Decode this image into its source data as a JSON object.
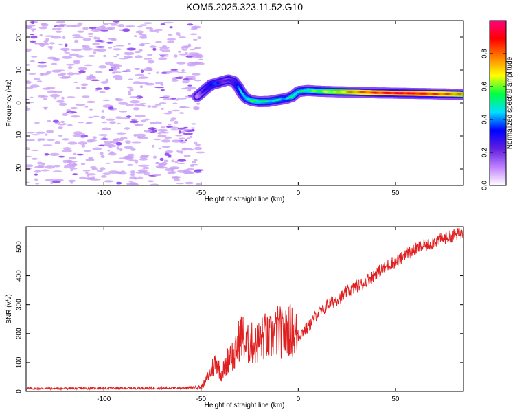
{
  "title": "KOM5.2025.323.11.52.G10",
  "chart_data": [
    {
      "type": "heatmap",
      "title": "KOM5.2025.323.11.52.G10",
      "xlabel": "Height of straight line (km)",
      "ylabel": "Frequency (Hz)",
      "xlim": [
        -140,
        85
      ],
      "ylim": [
        -25,
        25
      ],
      "xticks": [
        -100,
        -50,
        0,
        50
      ],
      "yticks": [
        -20,
        -10,
        0,
        10,
        20
      ],
      "xtick_labels": [
        "-100",
        "-50",
        "0",
        "50"
      ],
      "ytick_labels": [
        "-20",
        "-10",
        "0",
        "10",
        "20"
      ],
      "noise_region_x": [
        -140,
        -50
      ],
      "signal_trace": {
        "x": [
          -52,
          -48,
          -45,
          -42,
          -39,
          -36,
          -33,
          -31,
          -29,
          -27,
          -24,
          -20,
          -15,
          -10,
          -6,
          -3,
          0,
          5,
          10,
          20,
          30,
          40,
          50,
          60,
          70,
          80,
          85
        ],
        "y": [
          2,
          4,
          5.5,
          6,
          6.5,
          7,
          6.5,
          5,
          3,
          1.5,
          0.7,
          0.4,
          0.5,
          1,
          1.4,
          2,
          3.5,
          3.8,
          3.6,
          3.4,
          3.3,
          3.1,
          3.0,
          2.9,
          2.8,
          2.7,
          2.6
        ],
        "amplitude": [
          0.15,
          0.25,
          0.35,
          0.3,
          0.25,
          0.2,
          0.3,
          0.35,
          0.4,
          0.45,
          0.5,
          0.5,
          0.45,
          0.45,
          0.4,
          0.5,
          0.45,
          0.5,
          0.55,
          0.65,
          0.75,
          0.8,
          0.85,
          0.85,
          0.8,
          0.75,
          0.7
        ]
      },
      "colorbar": {
        "label": "Normalized spectral amplitude",
        "range": [
          0,
          1
        ],
        "ticks": [
          0.0,
          0.2,
          0.4,
          0.6,
          0.8
        ],
        "tick_labels": [
          "0.0",
          "0.2",
          "0.4",
          "0.6",
          "0.8"
        ],
        "colors": [
          "#ffffff",
          "#c080ff",
          "#6020e0",
          "#0000ff",
          "#00e0ff",
          "#00ff40",
          "#ffff00",
          "#ff8000",
          "#ff0000",
          "#ff0080"
        ]
      }
    },
    {
      "type": "line",
      "xlabel": "Height of straight line (km)",
      "ylabel": "SNR (v/v)",
      "xlim": [
        -140,
        85
      ],
      "ylim": [
        0,
        570
      ],
      "xticks": [
        -100,
        -50,
        0,
        50
      ],
      "yticks": [
        0,
        100,
        200,
        300,
        400,
        500
      ],
      "xtick_labels": [
        "-100",
        "-50",
        "0",
        "50"
      ],
      "ytick_labels": [
        "0",
        "100",
        "200",
        "300",
        "400",
        "500"
      ],
      "line_color": "#e02020",
      "series": [
        {
          "name": "SNR",
          "x": [
            -140,
            -120,
            -100,
            -80,
            -60,
            -50,
            -48,
            -45,
            -42,
            -40,
            -37,
            -35,
            -33,
            -31,
            -29,
            -27,
            -25,
            -22,
            -20,
            -17,
            -15,
            -12,
            -10,
            -7,
            -5,
            -3,
            0,
            3,
            5,
            8,
            10,
            13,
            15,
            18,
            20,
            23,
            25,
            28,
            30,
            33,
            35,
            38,
            40,
            43,
            45,
            48,
            50,
            53,
            55,
            58,
            60,
            63,
            65,
            68,
            70,
            73,
            75,
            78,
            80,
            83,
            85
          ],
          "values": [
            10,
            10,
            11,
            11,
            12,
            15,
            30,
            70,
            110,
            60,
            90,
            140,
            110,
            170,
            200,
            150,
            170,
            160,
            175,
            190,
            180,
            200,
            210,
            190,
            220,
            205,
            190,
            210,
            220,
            250,
            270,
            280,
            300,
            310,
            320,
            330,
            345,
            355,
            365,
            370,
            385,
            395,
            410,
            420,
            430,
            445,
            445,
            460,
            480,
            480,
            490,
            500,
            505,
            510,
            520,
            525,
            530,
            535,
            540,
            545,
            550
          ]
        }
      ]
    }
  ]
}
